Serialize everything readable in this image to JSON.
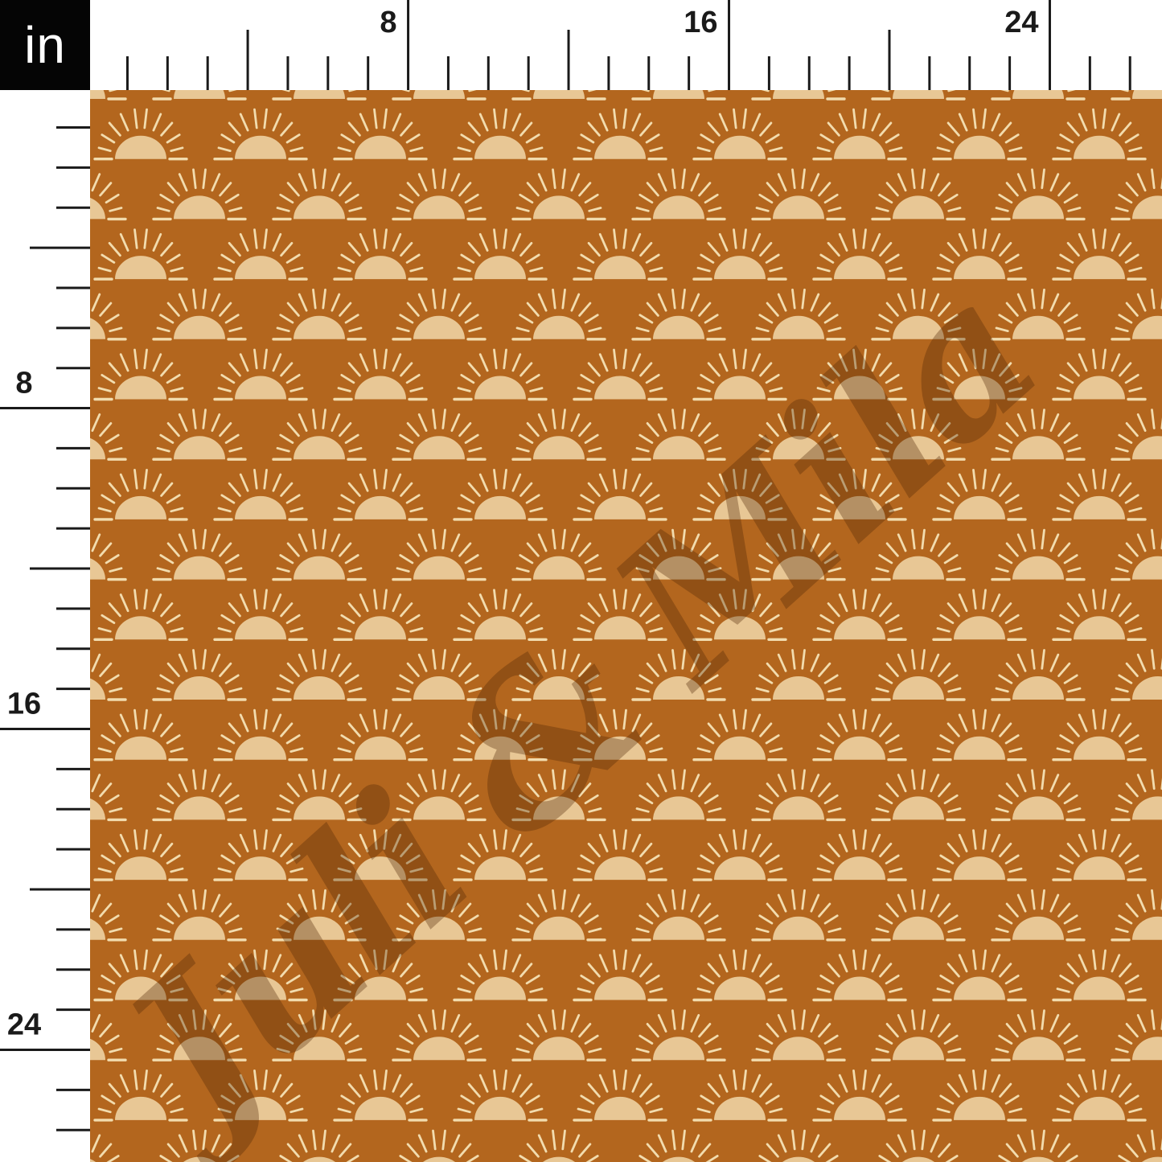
{
  "unit_box": {
    "label": "in",
    "background_color": "#050505",
    "text_color": "#ffffff"
  },
  "rulers": {
    "unit": "inches",
    "labeled_marks": [
      "8",
      "16",
      "24"
    ],
    "tick_color": "#1a1a1a",
    "background_color": "#ffffff"
  },
  "watermark": {
    "text": "Juli & Mila",
    "color": "rgba(80, 37, 6, 0.34)"
  },
  "pattern": {
    "motif": "boho-sunrise-suns",
    "background_color": "#b3661e",
    "sun_fill": "#e8c795",
    "sun_ray_color": "#f2dcae"
  }
}
